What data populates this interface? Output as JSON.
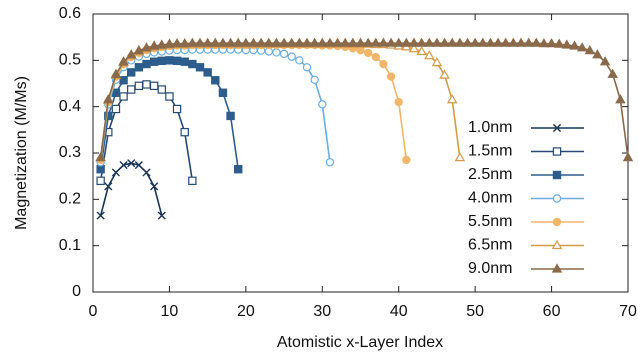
{
  "chart_data": {
    "type": "line",
    "xlabel": "Atomistic x-Layer Index",
    "ylabel": "Magnetization (M/Ms)",
    "xlim": [
      0,
      70
    ],
    "xticks": [
      0,
      10,
      20,
      30,
      40,
      50,
      60,
      70
    ],
    "ylim": [
      0,
      0.6
    ],
    "yticks": [
      0,
      0.1,
      0.2,
      0.3,
      0.4,
      0.5,
      0.6
    ],
    "grid": false,
    "legend": "right",
    "series": [
      {
        "name": "1.0nm",
        "color": "#1b3556",
        "marker": "cross",
        "x": [
          1,
          2,
          3,
          4,
          5,
          6,
          7,
          8,
          9
        ],
        "values": [
          0.165,
          0.228,
          0.258,
          0.274,
          0.278,
          0.274,
          0.258,
          0.228,
          0.165
        ]
      },
      {
        "name": "1.5nm",
        "color": "#264a72",
        "marker": "square-open",
        "x": [
          1,
          2,
          3,
          4,
          5,
          6,
          7,
          8,
          9,
          10,
          11,
          12,
          13
        ],
        "values": [
          0.24,
          0.345,
          0.395,
          0.422,
          0.437,
          0.445,
          0.448,
          0.445,
          0.437,
          0.422,
          0.395,
          0.345,
          0.24
        ]
      },
      {
        "name": "2.5nm",
        "color": "#2d5d8c",
        "marker": "square",
        "x": [
          1,
          2,
          3,
          4,
          5,
          6,
          7,
          8,
          9,
          10,
          11,
          12,
          13,
          14,
          15,
          16,
          17,
          18,
          19
        ],
        "values": [
          0.265,
          0.38,
          0.43,
          0.457,
          0.474,
          0.485,
          0.492,
          0.497,
          0.499,
          0.5,
          0.499,
          0.497,
          0.492,
          0.485,
          0.474,
          0.457,
          0.43,
          0.38,
          0.265
        ]
      },
      {
        "name": "4.0nm",
        "color": "#6aaee0",
        "marker": "circle-open",
        "x": [
          1,
          2,
          3,
          4,
          5,
          6,
          7,
          8,
          9,
          10,
          11,
          12,
          13,
          14,
          15,
          16,
          17,
          18,
          19,
          20,
          21,
          22,
          23,
          24,
          25,
          26,
          27,
          28,
          29,
          30,
          31
        ],
        "values": [
          0.28,
          0.405,
          0.458,
          0.485,
          0.5,
          0.508,
          0.514,
          0.517,
          0.519,
          0.521,
          0.522,
          0.522,
          0.523,
          0.523,
          0.523,
          0.523,
          0.523,
          0.523,
          0.523,
          0.522,
          0.522,
          0.521,
          0.519,
          0.517,
          0.514,
          0.508,
          0.5,
          0.485,
          0.458,
          0.405,
          0.28
        ]
      },
      {
        "name": "5.5nm",
        "color": "#f2b66a",
        "marker": "circle",
        "x": [
          1,
          2,
          3,
          4,
          5,
          6,
          7,
          8,
          9,
          10,
          11,
          12,
          13,
          14,
          15,
          16,
          17,
          18,
          19,
          20,
          21,
          22,
          23,
          24,
          25,
          26,
          27,
          28,
          29,
          30,
          31,
          32,
          33,
          34,
          35,
          36,
          37,
          38,
          39,
          40,
          41
        ],
        "values": [
          0.285,
          0.41,
          0.465,
          0.492,
          0.507,
          0.516,
          0.522,
          0.526,
          0.529,
          0.531,
          0.532,
          0.532,
          0.533,
          0.533,
          0.533,
          0.533,
          0.533,
          0.533,
          0.533,
          0.533,
          0.533,
          0.533,
          0.533,
          0.533,
          0.533,
          0.533,
          0.533,
          0.533,
          0.533,
          0.532,
          0.532,
          0.531,
          0.529,
          0.526,
          0.522,
          0.516,
          0.507,
          0.492,
          0.465,
          0.41,
          0.285
        ]
      },
      {
        "name": "6.5nm",
        "color": "#d49a48",
        "marker": "triangle-open",
        "x": [
          1,
          2,
          3,
          4,
          5,
          6,
          7,
          8,
          9,
          10,
          11,
          12,
          13,
          14,
          15,
          16,
          17,
          18,
          19,
          20,
          21,
          22,
          23,
          24,
          25,
          26,
          27,
          28,
          29,
          30,
          31,
          32,
          33,
          34,
          35,
          36,
          37,
          38,
          39,
          40,
          41,
          42,
          43,
          44,
          45,
          46,
          47,
          48
        ],
        "values": [
          0.29,
          0.415,
          0.468,
          0.495,
          0.51,
          0.519,
          0.525,
          0.529,
          0.531,
          0.533,
          0.534,
          0.534,
          0.535,
          0.535,
          0.535,
          0.535,
          0.535,
          0.535,
          0.535,
          0.535,
          0.535,
          0.535,
          0.535,
          0.535,
          0.535,
          0.535,
          0.535,
          0.535,
          0.535,
          0.535,
          0.535,
          0.535,
          0.535,
          0.535,
          0.535,
          0.535,
          0.534,
          0.534,
          0.533,
          0.531,
          0.529,
          0.525,
          0.519,
          0.51,
          0.495,
          0.468,
          0.415,
          0.29
        ]
      },
      {
        "name": "9.0nm",
        "color": "#8a6a4a",
        "marker": "triangle",
        "x": [
          1,
          2,
          3,
          4,
          5,
          6,
          7,
          8,
          9,
          10,
          11,
          12,
          13,
          14,
          15,
          16,
          17,
          18,
          19,
          20,
          21,
          22,
          23,
          24,
          25,
          26,
          27,
          28,
          29,
          30,
          31,
          32,
          33,
          34,
          35,
          36,
          37,
          38,
          39,
          40,
          41,
          42,
          43,
          44,
          45,
          46,
          47,
          48,
          49,
          50,
          51,
          52,
          53,
          54,
          55,
          56,
          57,
          58,
          59,
          60,
          61,
          62,
          63,
          64,
          65,
          66,
          67,
          68,
          69,
          70
        ],
        "values": [
          0.29,
          0.415,
          0.47,
          0.497,
          0.512,
          0.521,
          0.527,
          0.531,
          0.533,
          0.535,
          0.536,
          0.536,
          0.537,
          0.537,
          0.537,
          0.537,
          0.537,
          0.537,
          0.537,
          0.537,
          0.537,
          0.537,
          0.537,
          0.537,
          0.537,
          0.537,
          0.537,
          0.537,
          0.537,
          0.537,
          0.537,
          0.537,
          0.537,
          0.537,
          0.537,
          0.537,
          0.537,
          0.537,
          0.537,
          0.537,
          0.537,
          0.537,
          0.537,
          0.537,
          0.537,
          0.537,
          0.537,
          0.537,
          0.537,
          0.537,
          0.537,
          0.537,
          0.537,
          0.537,
          0.537,
          0.537,
          0.537,
          0.537,
          0.536,
          0.536,
          0.535,
          0.533,
          0.531,
          0.527,
          0.521,
          0.512,
          0.497,
          0.47,
          0.415,
          0.29
        ]
      }
    ]
  }
}
